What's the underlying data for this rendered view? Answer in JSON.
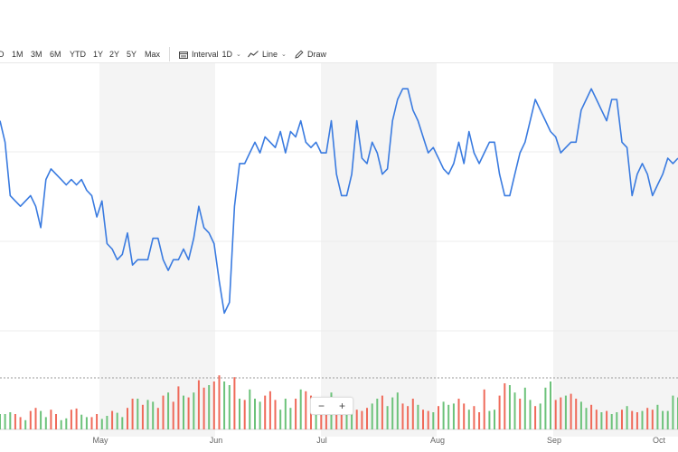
{
  "toolbar": {
    "ranges": [
      "D",
      "1M",
      "3M",
      "6M",
      "YTD",
      "1Y",
      "2Y",
      "5Y",
      "Max"
    ],
    "interval_label": "Interval",
    "interval_value": "1D",
    "chart_type": "Line",
    "draw_label": "Draw"
  },
  "zoom": {
    "out": "−",
    "in": "+"
  },
  "colors": {
    "line": "#3a7be0",
    "up": "#6cc27a",
    "down": "#ef6a5a",
    "shade": "#f4f4f4",
    "grid": "#ececec"
  },
  "chart_data": {
    "type": "line",
    "x_labels": [
      "May",
      "Jun",
      "Jul",
      "Aug",
      "Sep",
      "Oct"
    ],
    "price": [
      0.6,
      0.58,
      0.53,
      0.525,
      0.52,
      0.525,
      0.53,
      0.52,
      0.5,
      0.545,
      0.555,
      0.55,
      0.545,
      0.54,
      0.545,
      0.54,
      0.545,
      0.535,
      0.53,
      0.51,
      0.525,
      0.485,
      0.48,
      0.47,
      0.475,
      0.495,
      0.465,
      0.47,
      0.47,
      0.47,
      0.49,
      0.49,
      0.47,
      0.46,
      0.47,
      0.47,
      0.48,
      0.47,
      0.49,
      0.52,
      0.5,
      0.495,
      0.485,
      0.45,
      0.42,
      0.43,
      0.52,
      0.56,
      0.56,
      0.57,
      0.58,
      0.57,
      0.585,
      0.58,
      0.575,
      0.59,
      0.57,
      0.59,
      0.585,
      0.6,
      0.58,
      0.575,
      0.58,
      0.57,
      0.57,
      0.6,
      0.55,
      0.53,
      0.53,
      0.55,
      0.6,
      0.565,
      0.56,
      0.58,
      0.57,
      0.55,
      0.555,
      0.6,
      0.62,
      0.63,
      0.63,
      0.61,
      0.6,
      0.585,
      0.57,
      0.575,
      0.565,
      0.555,
      0.55,
      0.56,
      0.58,
      0.56,
      0.59,
      0.57,
      0.56,
      0.57,
      0.58,
      0.58,
      0.55,
      0.53,
      0.53,
      0.55,
      0.57,
      0.58,
      0.6,
      0.62,
      0.61,
      0.6,
      0.59,
      0.585,
      0.57,
      0.575,
      0.58,
      0.58,
      0.61,
      0.62,
      0.63,
      0.62,
      0.61,
      0.6,
      0.62,
      0.62,
      0.58,
      0.575,
      0.53,
      0.55,
      0.56,
      0.55,
      0.53,
      0.54,
      0.55,
      0.565,
      0.56,
      0.565
    ],
    "volume": [
      0.25,
      0.25,
      0.28,
      0.25,
      0.2,
      0.15,
      0.3,
      0.35,
      0.3,
      0.2,
      0.32,
      0.25,
      0.15,
      0.18,
      0.32,
      0.34,
      0.24,
      0.2,
      0.2,
      0.25,
      0.17,
      0.22,
      0.3,
      0.27,
      0.2,
      0.35,
      0.5,
      0.5,
      0.4,
      0.48,
      0.45,
      0.35,
      0.55,
      0.6,
      0.45,
      0.7,
      0.55,
      0.52,
      0.6,
      0.8,
      0.68,
      0.72,
      0.78,
      0.88,
      0.78,
      0.72,
      0.85,
      0.5,
      0.48,
      0.65,
      0.5,
      0.45,
      0.55,
      0.62,
      0.48,
      0.32,
      0.5,
      0.35,
      0.5,
      0.65,
      0.62,
      0.55,
      0.5,
      0.45,
      0.4,
      0.6,
      0.32,
      0.42,
      0.38,
      0.45,
      0.32,
      0.3,
      0.35,
      0.42,
      0.5,
      0.55,
      0.38,
      0.52,
      0.6,
      0.42,
      0.38,
      0.5,
      0.4,
      0.32,
      0.3,
      0.28,
      0.38,
      0.45,
      0.4,
      0.42,
      0.5,
      0.42,
      0.32,
      0.38,
      0.28,
      0.65,
      0.3,
      0.32,
      0.55,
      0.75,
      0.72,
      0.6,
      0.5,
      0.68,
      0.48,
      0.38,
      0.42,
      0.68,
      0.78,
      0.48,
      0.52,
      0.55,
      0.58,
      0.5,
      0.45,
      0.35,
      0.4,
      0.32,
      0.28,
      0.3,
      0.25,
      0.28,
      0.32,
      0.38,
      0.3,
      0.28,
      0.3,
      0.35,
      0.32,
      0.4,
      0.3,
      0.3,
      0.55,
      0.52
    ],
    "volume_up": [
      true,
      true,
      true,
      false,
      false,
      true,
      false,
      false,
      true,
      true,
      false,
      false,
      true,
      true,
      false,
      false,
      true,
      true,
      false,
      false,
      true,
      true,
      false,
      true,
      true,
      false,
      false,
      true,
      false,
      true,
      true,
      false,
      false,
      true,
      false,
      false,
      true,
      false,
      true,
      false,
      false,
      true,
      false,
      false,
      true,
      true,
      false,
      true,
      false,
      true,
      true,
      true,
      false,
      false,
      false,
      true,
      true,
      true,
      false,
      true,
      false,
      false,
      true,
      false,
      false,
      true,
      false,
      false,
      true,
      true,
      false,
      false,
      false,
      true,
      true,
      false,
      true,
      true,
      true,
      false,
      false,
      false,
      true,
      false,
      false,
      true,
      false,
      true,
      true,
      true,
      false,
      false,
      true,
      false,
      false,
      false,
      true,
      true,
      false,
      false,
      true,
      true,
      false,
      true,
      true,
      false,
      true,
      true,
      true,
      false,
      false,
      true,
      false,
      false,
      true,
      true,
      false,
      false,
      true,
      false,
      true,
      true,
      false,
      true,
      false,
      false,
      true,
      false,
      false,
      true,
      true,
      true,
      true,
      true
    ]
  }
}
